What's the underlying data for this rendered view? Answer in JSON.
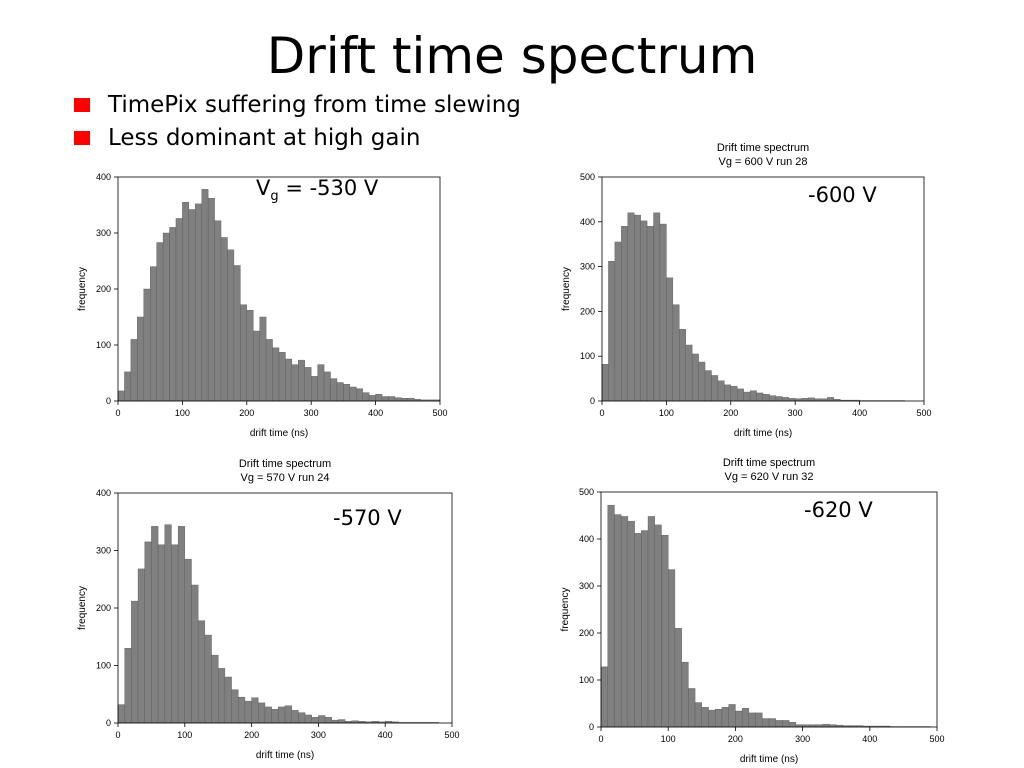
{
  "slide": {
    "title": "Drift time spectrum",
    "bullets": [
      "TimePix suffering from time slewing",
      "Less dominant at high gain"
    ],
    "colors": {
      "bullet_marker": "#ff0000",
      "bar_fill": "#808080",
      "bar_edge": "#5a5a5a"
    }
  },
  "chart_data": [
    {
      "type": "bar",
      "title": "",
      "subtitle": "",
      "annotation": {
        "main": "V",
        "sub": "g",
        "rest": " = -530 V"
      },
      "xlabel": "drift time (ns)",
      "ylabel": "frequency",
      "xlim": [
        0,
        500
      ],
      "ylim": [
        0,
        400
      ],
      "xticks": [
        0,
        100,
        200,
        300,
        400,
        500
      ],
      "yticks": [
        0,
        100,
        200,
        300,
        400
      ],
      "bin_width": 10,
      "bin_start": 0,
      "values": [
        18,
        52,
        110,
        150,
        200,
        240,
        283,
        300,
        310,
        326,
        355,
        342,
        352,
        378,
        362,
        322,
        292,
        270,
        242,
        172,
        162,
        125,
        150,
        110,
        95,
        87,
        75,
        65,
        73,
        60,
        44,
        65,
        52,
        40,
        33,
        30,
        25,
        22,
        15,
        10,
        12,
        8,
        8,
        6,
        5,
        5,
        3,
        2,
        2,
        2
      ]
    },
    {
      "type": "bar",
      "title": "Drift time spectrum",
      "subtitle": "Vg = 600 V run 28",
      "annotation": {
        "main": "-600 V",
        "sub": "",
        "rest": ""
      },
      "xlabel": "drift time (ns)",
      "ylabel": "frequency",
      "xlim": [
        0,
        500
      ],
      "ylim": [
        0,
        500
      ],
      "xticks": [
        0,
        100,
        200,
        300,
        400,
        500
      ],
      "yticks": [
        0,
        100,
        200,
        300,
        400,
        500
      ],
      "bin_width": 10,
      "bin_start": 0,
      "values": [
        82,
        312,
        355,
        390,
        420,
        415,
        402,
        390,
        420,
        395,
        275,
        215,
        160,
        125,
        105,
        87,
        68,
        57,
        45,
        36,
        33,
        27,
        20,
        23,
        18,
        15,
        12,
        10,
        8,
        6,
        5,
        6,
        7,
        5,
        5,
        8,
        4,
        2,
        2,
        2,
        1,
        1,
        1,
        1,
        1,
        1,
        1,
        0,
        0,
        0
      ]
    },
    {
      "type": "bar",
      "title": "Drift time spectrum",
      "subtitle": "Vg = 570 V run 24",
      "annotation": {
        "main": "-570 V",
        "sub": "",
        "rest": ""
      },
      "xlabel": "drift time (ns)",
      "ylabel": "frequency",
      "xlim": [
        0,
        500
      ],
      "ylim": [
        0,
        400
      ],
      "xticks": [
        0,
        100,
        200,
        300,
        400,
        500
      ],
      "yticks": [
        0,
        100,
        200,
        300,
        400
      ],
      "bin_width": 10,
      "bin_start": 0,
      "values": [
        32,
        130,
        212,
        268,
        315,
        342,
        310,
        345,
        310,
        342,
        285,
        240,
        178,
        153,
        118,
        95,
        80,
        58,
        45,
        38,
        44,
        35,
        28,
        24,
        28,
        30,
        22,
        18,
        14,
        10,
        13,
        10,
        5,
        6,
        3,
        4,
        3,
        2,
        3,
        2,
        3,
        2,
        1,
        1,
        1,
        1,
        1,
        1,
        0,
        0
      ]
    },
    {
      "type": "bar",
      "title": "Drift time spectrum",
      "subtitle": "Vg = 620 V run 32",
      "annotation": {
        "main": "-620 V",
        "sub": "",
        "rest": ""
      },
      "xlabel": "drift time (ns)",
      "ylabel": "frequency",
      "xlim": [
        0,
        500
      ],
      "ylim": [
        0,
        500
      ],
      "xticks": [
        0,
        100,
        200,
        300,
        400,
        500
      ],
      "yticks": [
        0,
        100,
        200,
        300,
        400,
        500
      ],
      "bin_width": 10,
      "bin_start": 0,
      "values": [
        128,
        472,
        452,
        448,
        438,
        412,
        418,
        448,
        430,
        408,
        335,
        210,
        138,
        82,
        52,
        42,
        36,
        38,
        42,
        48,
        34,
        40,
        30,
        30,
        18,
        18,
        14,
        14,
        10,
        5,
        5,
        5,
        5,
        6,
        5,
        4,
        3,
        3,
        3,
        2,
        2,
        2,
        2,
        1,
        1,
        1,
        1,
        1,
        1,
        0
      ]
    }
  ]
}
